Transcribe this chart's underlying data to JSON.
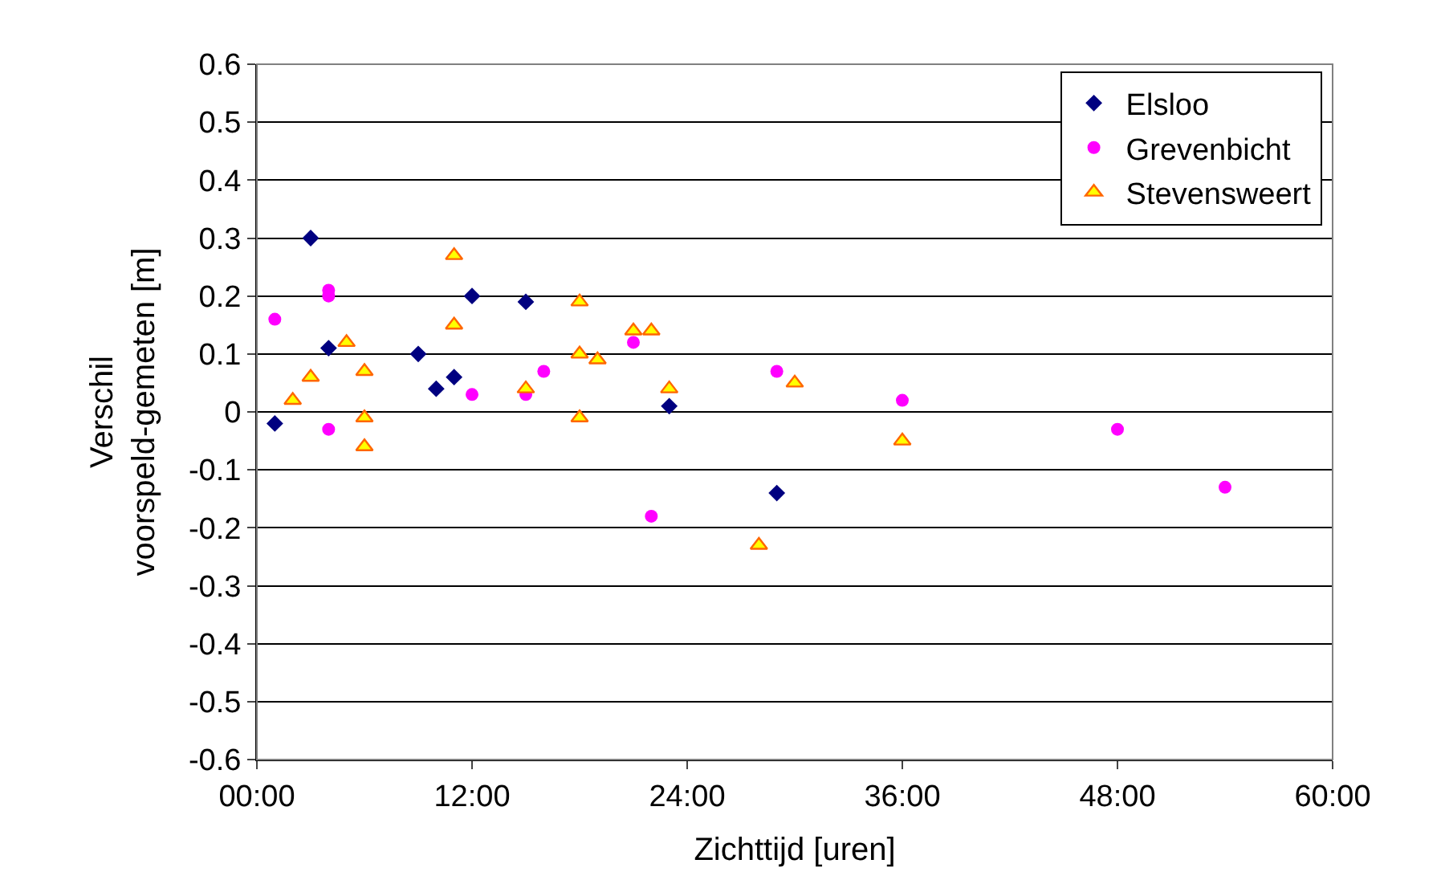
{
  "chart_data": {
    "type": "scatter",
    "xlabel": "Zichttijd [uren]",
    "ylabel": "Verschil\nvoorspeld-gemeten [m]",
    "xlim": [
      0,
      60
    ],
    "xticks": [
      {
        "value": 0,
        "label": "00:00"
      },
      {
        "value": 12,
        "label": "12:00"
      },
      {
        "value": 24,
        "label": "24:00"
      },
      {
        "value": 36,
        "label": "36:00"
      },
      {
        "value": 48,
        "label": "48:00"
      },
      {
        "value": 60,
        "label": "60:00"
      }
    ],
    "ylim": [
      -0.6,
      0.6
    ],
    "yticks": [
      -0.6,
      -0.5,
      -0.4,
      -0.3,
      -0.2,
      -0.1,
      0,
      0.1,
      0.2,
      0.3,
      0.4,
      0.5,
      0.6
    ],
    "grid": "y",
    "legend": "top right",
    "series": [
      {
        "name": "Elsloo",
        "color": "#000080",
        "marker": "diamond",
        "x": [
          1,
          3,
          4,
          9,
          10,
          11,
          12,
          15,
          23,
          29
        ],
        "values": [
          -0.02,
          0.3,
          0.11,
          0.1,
          0.04,
          0.06,
          0.2,
          0.19,
          0.01,
          -0.14
        ]
      },
      {
        "name": "Grevenbicht",
        "color": "#ff00ff",
        "marker": "circle",
        "x": [
          1,
          4,
          4,
          4,
          12,
          15,
          16,
          21,
          22,
          29,
          36,
          48,
          54
        ],
        "values": [
          0.16,
          0.21,
          0.2,
          -0.03,
          0.03,
          0.03,
          0.07,
          0.12,
          -0.18,
          0.07,
          0.02,
          -0.03,
          -0.13
        ]
      },
      {
        "name": "Stevensweert",
        "color": "#ffff00",
        "marker": "triangle",
        "x": [
          2,
          3,
          5,
          6,
          6,
          6,
          11,
          11,
          15,
          18,
          18,
          18,
          19,
          21,
          22,
          23,
          28,
          30,
          36
        ],
        "values": [
          0.02,
          0.06,
          0.12,
          0.07,
          -0.01,
          -0.06,
          0.27,
          0.15,
          0.04,
          0.19,
          0.1,
          -0.01,
          0.09,
          0.14,
          0.14,
          0.04,
          -0.23,
          0.05,
          -0.05
        ]
      }
    ]
  }
}
